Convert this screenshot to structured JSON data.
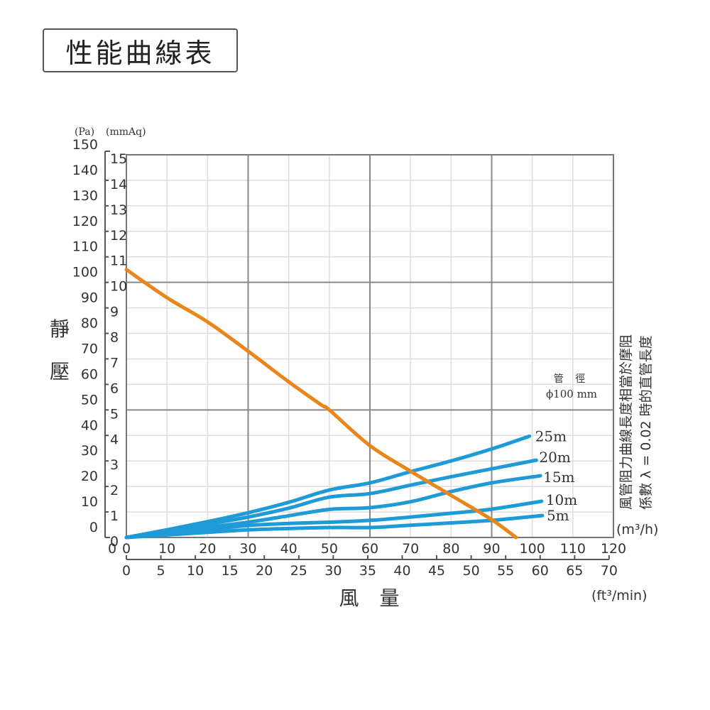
{
  "header": {
    "title": "性能曲線表"
  },
  "chart_data": {
    "type": "line",
    "title": "性能曲線表",
    "xlabel": "風 量",
    "ylabel": "靜 壓",
    "x_unit_primary": "(m³/h)",
    "x_unit_secondary": "(ft³/min)",
    "y_unit_primary": "(mmAq)",
    "y_unit_secondary": "(Pa)",
    "xlim": [
      0,
      120
    ],
    "ylim": [
      0,
      15
    ],
    "x_ticks": [
      0,
      10,
      20,
      30,
      40,
      50,
      60,
      70,
      80,
      90,
      100,
      110,
      120
    ],
    "x2_ticks": [
      0,
      5,
      10,
      15,
      20,
      25,
      30,
      35,
      40,
      45,
      50,
      55,
      60,
      65,
      70
    ],
    "y_ticks": [
      0,
      1,
      2,
      3,
      4,
      5,
      6,
      7,
      8,
      9,
      10,
      11,
      12,
      13,
      14,
      15
    ],
    "y2_ticks": [
      0,
      10,
      20,
      30,
      40,
      50,
      60,
      70,
      80,
      90,
      100,
      110,
      120,
      130,
      140,
      150
    ],
    "grid": true,
    "pipe_note": {
      "line1": "管 徑",
      "line2": "ϕ100 mm"
    },
    "side_note": {
      "line1": "風管阻力曲線長度相當於摩阻",
      "line2": "係數 λ = 0.02 時的直管長度"
    },
    "series": [
      {
        "name": "Static pressure",
        "color": "#E8861C",
        "x": [
          0,
          10,
          20,
          30,
          40,
          48,
          50,
          60,
          70,
          80,
          90,
          96
        ],
        "y": [
          10.5,
          9.4,
          8.45,
          7.3,
          6.1,
          5.2,
          5.0,
          3.6,
          2.6,
          1.65,
          0.7,
          0.0
        ]
      },
      {
        "name": "25m",
        "color": "#1E9AD6",
        "x": [
          0,
          10,
          20,
          30,
          40,
          50,
          60,
          70,
          80,
          90,
          99.3
        ],
        "y": [
          0,
          0.3,
          0.62,
          0.97,
          1.38,
          1.86,
          2.14,
          2.58,
          3.0,
          3.47,
          3.97
        ]
      },
      {
        "name": "20m",
        "color": "#1E9AD6",
        "x": [
          0,
          10,
          20,
          30,
          40,
          50,
          60,
          70,
          80,
          90,
          101
        ],
        "y": [
          0,
          0.25,
          0.52,
          0.8,
          1.15,
          1.58,
          1.72,
          2.05,
          2.38,
          2.69,
          3.03
        ]
      },
      {
        "name": "15m",
        "color": "#1E9AD6",
        "x": [
          0,
          10,
          20,
          30,
          40,
          50,
          60,
          70,
          80,
          90,
          102
        ],
        "y": [
          0,
          0.2,
          0.4,
          0.6,
          0.85,
          1.1,
          1.17,
          1.4,
          1.8,
          2.14,
          2.42
        ]
      },
      {
        "name": "10m",
        "color": "#1E9AD6",
        "x": [
          0,
          10,
          20,
          30,
          40,
          50,
          60,
          70,
          80,
          90,
          102.3
        ],
        "y": [
          0,
          0.15,
          0.3,
          0.47,
          0.55,
          0.6,
          0.67,
          0.8,
          0.95,
          1.11,
          1.42
        ]
      },
      {
        "name": "5m",
        "color": "#1E9AD6",
        "x": [
          0,
          10,
          20,
          30,
          40,
          50,
          60,
          70,
          80,
          90,
          102.5
        ],
        "y": [
          0,
          0.1,
          0.2,
          0.3,
          0.35,
          0.39,
          0.39,
          0.48,
          0.57,
          0.67,
          0.86
        ]
      }
    ]
  }
}
